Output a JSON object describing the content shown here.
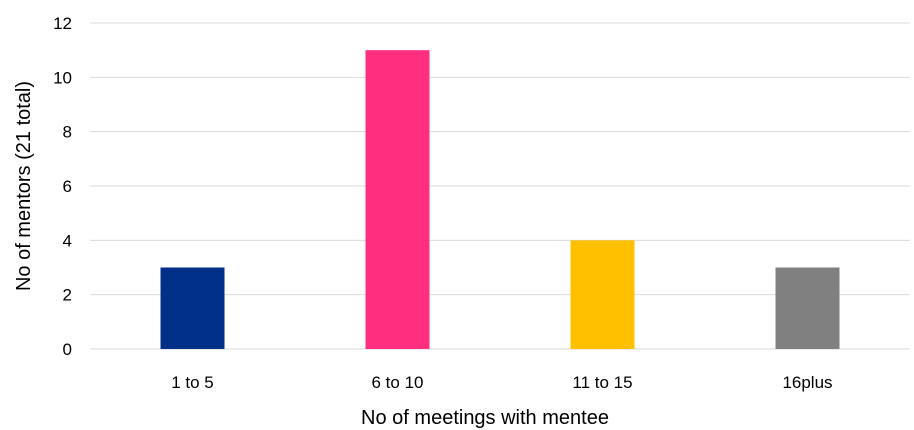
{
  "chart_data": {
    "type": "bar",
    "title": "",
    "xlabel": "No of meetings with mentee",
    "ylabel": "No of mentors (21 total)",
    "categories": [
      "1 to 5",
      "6 to 10",
      "11 to 15",
      "16plus"
    ],
    "values": [
      3,
      11,
      4,
      3
    ],
    "ylim": [
      0,
      12
    ],
    "yticks": [
      0,
      2,
      4,
      6,
      8,
      10,
      12
    ],
    "bar_colors": [
      "#003087",
      "#ff2f80",
      "#ffc000",
      "#808080"
    ],
    "grid": true,
    "legend": "none"
  },
  "colors": {
    "grid": "#d9d9d9",
    "text": "#000000"
  }
}
